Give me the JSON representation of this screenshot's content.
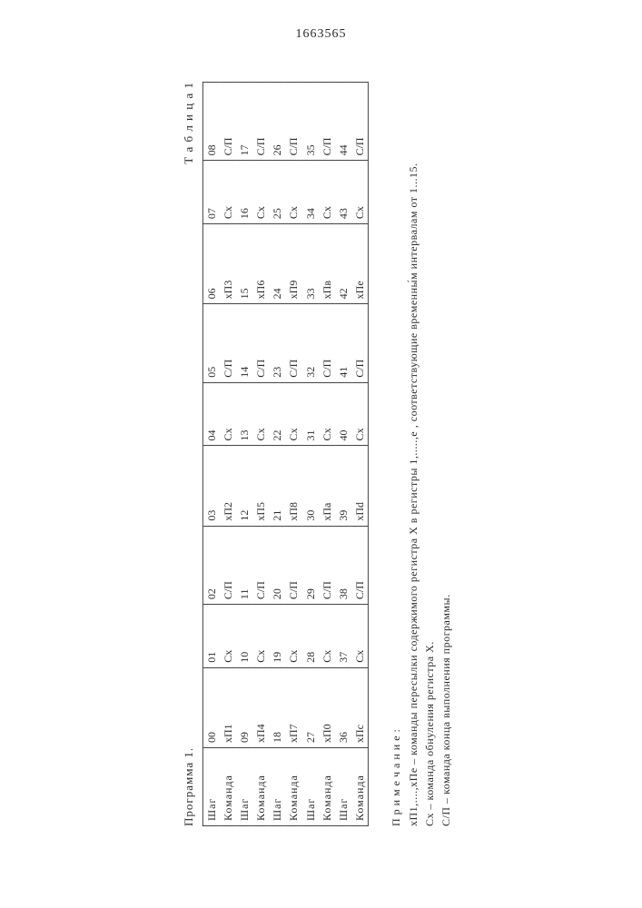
{
  "page_number": "1663565",
  "program_label": "Программа 1.",
  "table_label": "Т а б л и ц а 1",
  "row_labels": [
    "Шаг",
    "Команда",
    "Шаг",
    "Команда",
    "Шаг",
    "Команда",
    "Шаг",
    "Команда",
    "Шаг",
    "Команда"
  ],
  "columns": 9,
  "cells": [
    [
      "00",
      "01",
      "02",
      "03",
      "04",
      "05",
      "06",
      "07",
      "08"
    ],
    [
      "хП1",
      "Сх",
      "С/П",
      "хП2",
      "Сх",
      "С/П",
      "хП3",
      "Сх",
      "С/П"
    ],
    [
      "09",
      "10",
      "11",
      "12",
      "13",
      "14",
      "15",
      "16",
      "17"
    ],
    [
      "хП4",
      "Сх",
      "С/П",
      "хП5",
      "Сх",
      "С/П",
      "хП6",
      "Сх",
      "С/П"
    ],
    [
      "18",
      "19",
      "20",
      "21",
      "22",
      "23",
      "24",
      "25",
      "26"
    ],
    [
      "хП7",
      "Сх",
      "С/П",
      "хП8",
      "Сх",
      "С/П",
      "хП9",
      "Сх",
      "С/П"
    ],
    [
      "27",
      "28",
      "29",
      "30",
      "31",
      "32",
      "33",
      "34",
      "35"
    ],
    [
      "хП0",
      "Сх",
      "С/П",
      "хПа",
      "Сх",
      "С/П",
      "хПв",
      "Сх",
      "С/П"
    ],
    [
      "36",
      "37",
      "38",
      "39",
      "40",
      "41",
      "42",
      "43",
      "44"
    ],
    [
      "хПc",
      "Сх",
      "С/П",
      "хПd",
      "Сх",
      "С/П",
      "хПе",
      "Сх",
      "С/П"
    ]
  ],
  "notes_heading": "П р и м е ч а н и е :",
  "note1": "хП1,....,хПе – команды пересылки содержимого регистра X в регистры 1,.....,е , соответствующие временны́м интервалам от 1...15.",
  "note2": "Сх – команда обнуления регистра X.",
  "note3": "С/П – команда конца выполнения программы."
}
